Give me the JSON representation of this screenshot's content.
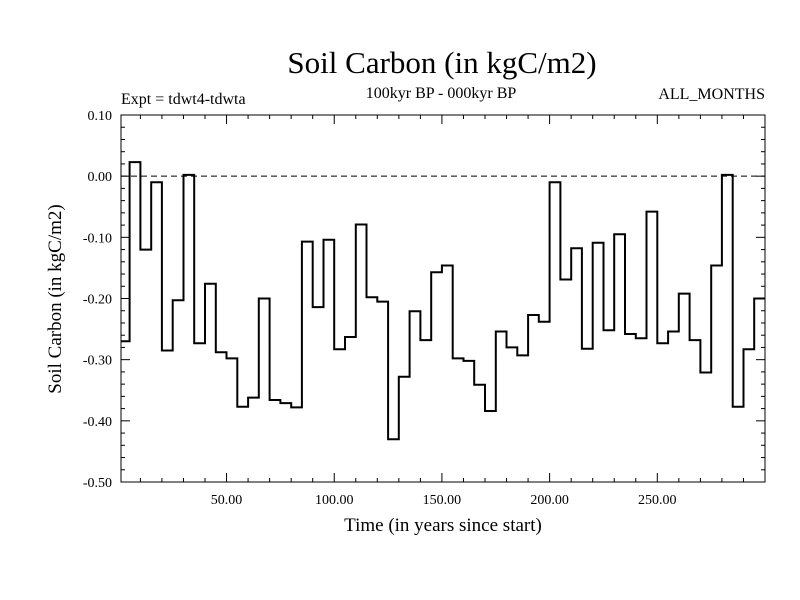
{
  "chart_data": {
    "type": "line",
    "style": "step",
    "title": "Soil Carbon (in kgC/m2)",
    "subtitle": "100kyr BP - 000kyr BP",
    "left_label": "Expt = tdwt4-tdwta",
    "right_label": "ALL_MONTHS",
    "xlabel": "Time (in years since start)",
    "ylabel": "Soil Carbon (in kgC/m2)",
    "xlim": [
      1,
      300
    ],
    "ylim": [
      -0.5,
      0.1
    ],
    "xticks": [
      50,
      100,
      150,
      200,
      250
    ],
    "xtick_labels": [
      "50.00",
      "100.00",
      "150.00",
      "200.00",
      "250.00"
    ],
    "yticks": [
      0.1,
      0.0,
      -0.1,
      -0.2,
      -0.3,
      -0.4,
      -0.5
    ],
    "ytick_labels": [
      "0.10",
      "0.00",
      "-0.10",
      "-0.20",
      "-0.30",
      "-0.40",
      "-0.50"
    ],
    "reference_line": 0.0,
    "series": [
      {
        "name": "Soil Carbon",
        "x": [
          1,
          5,
          10,
          15,
          20,
          25,
          30,
          35,
          40,
          45,
          50,
          55,
          60,
          65,
          70,
          75,
          80,
          85,
          90,
          95,
          100,
          105,
          110,
          115,
          120,
          125,
          130,
          135,
          140,
          145,
          150,
          155,
          160,
          165,
          170,
          175,
          180,
          185,
          190,
          195,
          200,
          205,
          210,
          215,
          220,
          225,
          230,
          235,
          240,
          245,
          250,
          255,
          260,
          265,
          270,
          275,
          280,
          285,
          290,
          295,
          300
        ],
        "values": [
          -0.27,
          0.023,
          -0.12,
          -0.01,
          -0.285,
          -0.203,
          0.002,
          -0.273,
          -0.176,
          -0.288,
          -0.298,
          -0.377,
          -0.362,
          -0.2,
          -0.366,
          -0.371,
          -0.378,
          -0.107,
          -0.214,
          -0.104,
          -0.283,
          -0.263,
          -0.079,
          -0.198,
          -0.205,
          -0.43,
          -0.328,
          -0.221,
          -0.268,
          -0.157,
          -0.146,
          -0.298,
          -0.302,
          -0.341,
          -0.384,
          -0.254,
          -0.28,
          -0.293,
          -0.227,
          -0.238,
          -0.01,
          -0.169,
          -0.118,
          -0.282,
          -0.109,
          -0.252,
          -0.095,
          -0.258,
          -0.265,
          -0.058,
          -0.273,
          -0.254,
          -0.192,
          -0.268,
          -0.321,
          -0.146,
          0.002,
          -0.377,
          -0.283,
          -0.2,
          -0.2
        ]
      }
    ]
  }
}
